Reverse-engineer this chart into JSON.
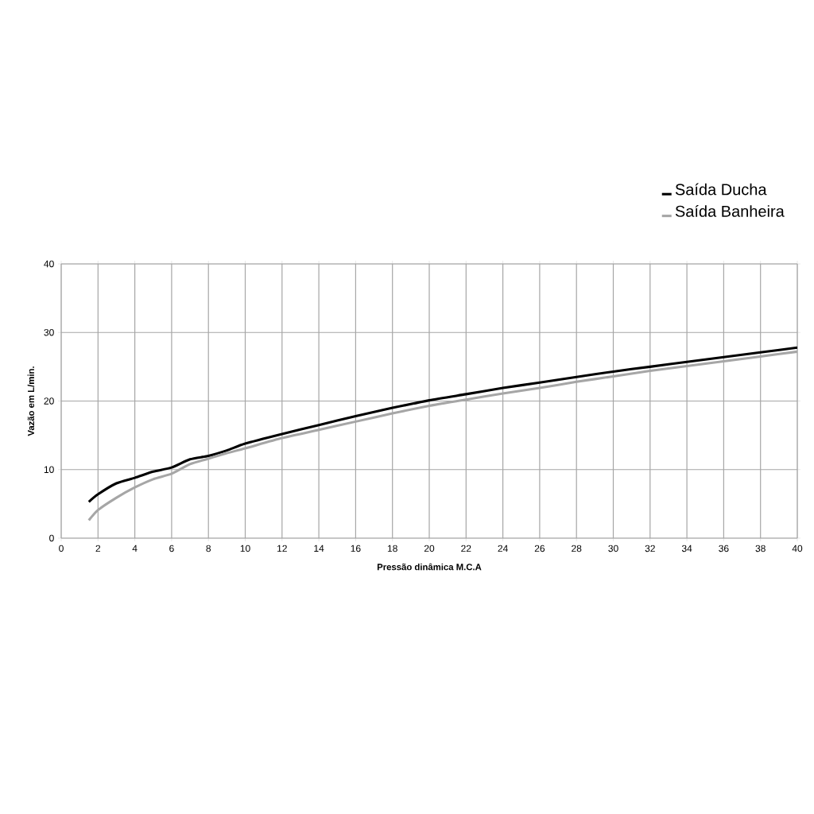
{
  "chart_data": {
    "type": "line",
    "xlabel": "Pressão dinâmica M.C.A",
    "ylabel": "Vazão em L/min.",
    "x": [
      1.5,
      2,
      3,
      4,
      5,
      6,
      7,
      8,
      9,
      10,
      12,
      14,
      16,
      18,
      20,
      22,
      24,
      26,
      28,
      30,
      32,
      34,
      36,
      38,
      40
    ],
    "series": [
      {
        "name": "Saída Ducha",
        "color": "#000000",
        "values": [
          5.3,
          6.4,
          8.0,
          8.8,
          9.7,
          10.3,
          11.5,
          12.0,
          12.8,
          13.8,
          15.2,
          16.5,
          17.8,
          19.0,
          20.1,
          21.0,
          21.9,
          22.7,
          23.5,
          24.3,
          25.0,
          25.7,
          26.4,
          27.1,
          27.8
        ]
      },
      {
        "name": "Saída Banheira",
        "color": "#a6a6a6",
        "values": [
          2.6,
          4.1,
          5.9,
          7.4,
          8.6,
          9.4,
          10.8,
          11.6,
          12.4,
          13.1,
          14.6,
          15.8,
          17.0,
          18.2,
          19.3,
          20.2,
          21.1,
          21.9,
          22.8,
          23.6,
          24.4,
          25.1,
          25.8,
          26.5,
          27.2
        ]
      }
    ],
    "xlim": [
      0,
      40
    ],
    "xticks": [
      0,
      2,
      4,
      6,
      8,
      10,
      12,
      14,
      16,
      18,
      20,
      22,
      24,
      26,
      28,
      30,
      32,
      34,
      36,
      38,
      40
    ],
    "ylim": [
      0,
      40
    ],
    "yticks": [
      0,
      10,
      20,
      30,
      40
    ],
    "grid": true,
    "legend": "top right",
    "marker": "none",
    "line_style": "solid"
  }
}
